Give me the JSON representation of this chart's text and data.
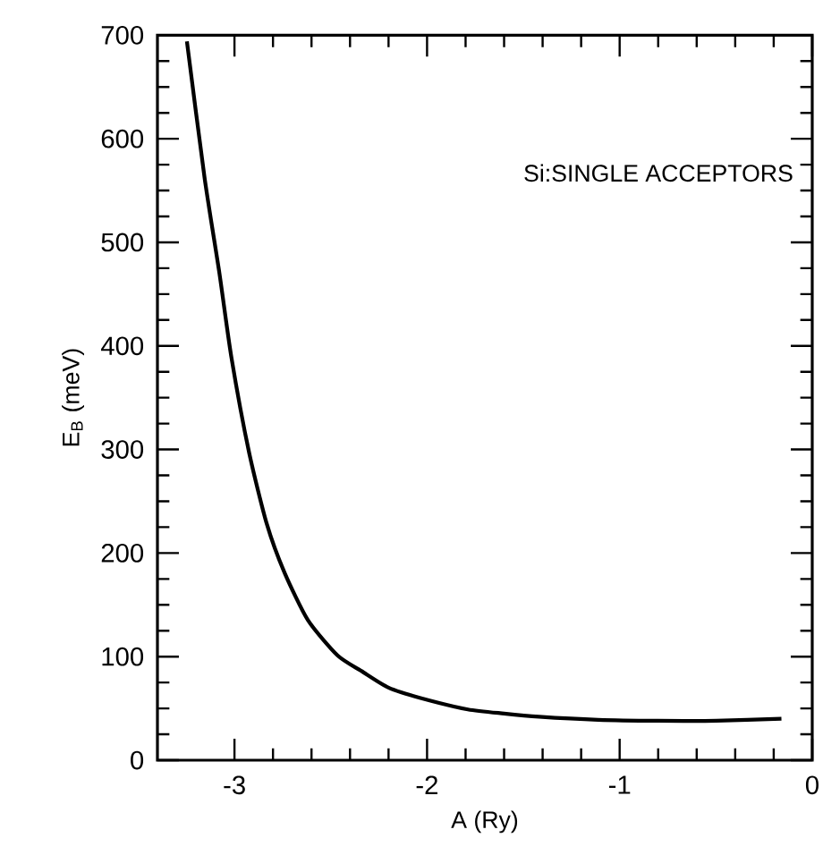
{
  "chart_data": {
    "type": "line",
    "xlabel": "A (Ry)",
    "ylabel": "E$_{B}$ (meV)",
    "annotations": [
      "Si:SINGLE ACCEPTORS"
    ],
    "xlim": [
      -3.4,
      0
    ],
    "ylim": [
      0,
      700
    ],
    "xticks": [
      -3,
      -2,
      -1,
      0
    ],
    "yticks": [
      0,
      100,
      200,
      300,
      400,
      500,
      600,
      700
    ],
    "marker": "none",
    "line_style": "solid",
    "series": [
      {
        "color": "#000000",
        "x": [
          -3.247,
          -3.155,
          -3.078,
          -3.016,
          -2.924,
          -2.832,
          -2.74,
          -2.618,
          -2.464,
          -2.34,
          -2.2,
          -2.034,
          -1.788,
          -1.6,
          -1.419,
          -1.112,
          -0.805,
          -0.498,
          -0.16
        ],
        "values": [
          694,
          562,
          470,
          389,
          297,
          228,
          181,
          135,
          101,
          86,
          70,
          60,
          49,
          45,
          42,
          39,
          38,
          38,
          40
        ]
      }
    ]
  }
}
